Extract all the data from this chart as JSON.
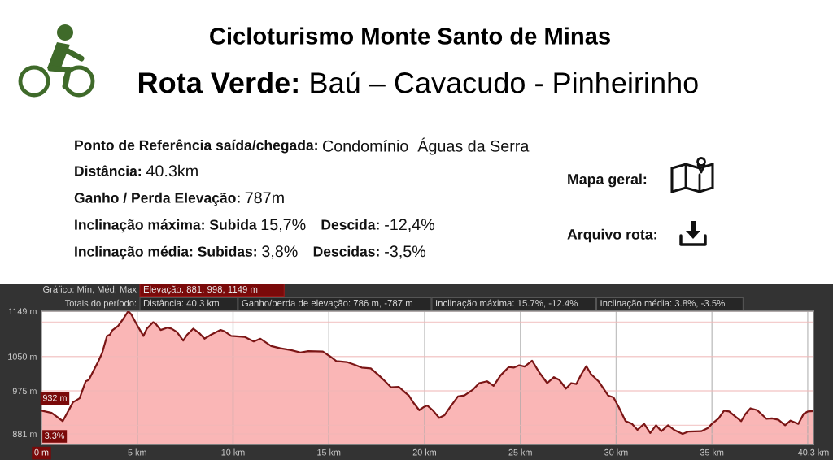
{
  "chart_data": {
    "type": "area",
    "title": "Cicloturismo Monte Santo de Minas",
    "subtitle": "Rota Verde: Baú – Cavacudo - Pinheirinho",
    "annotations": [
      "Ponto de Referência saída/chegada:",
      "Condomínio  Águas da Serra",
      "Distância:",
      "40.3km",
      "Ganho / Perda Elevação:",
      "787m",
      "Inclinação máxima: Subida",
      "15,7%",
      "Descida:",
      "-12,4%",
      "Inclinação média: Subidas:",
      "3,8%",
      "Descidas:",
      "-3,5%",
      "Mapa geral:",
      "Arquivo rota:",
      "Gráfico: Mín, Méd, Max",
      "Elevação: 881, 998, 1149 m",
      "Totais do período:",
      "Distância: 40.3 km",
      "Ganho/perda de elevação: 786 m, -787 m",
      "Inclinação máxima: 15.7%, -12.4%",
      "Inclinação média: 3.8%, -3.5%",
      {
        "text": "932 m",
        "x": 0,
        "y": 932
      },
      "3.3%"
    ],
    "x": [
      0,
      0.53,
      1.11,
      1.5,
      1.64,
      1.99,
      2.31,
      2.47,
      2.96,
      3.17,
      3.42,
      3.58,
      3.69,
      4.0,
      4.28,
      4.53,
      4.69,
      5.04,
      5.32,
      5.5,
      5.83,
      5.97,
      6.22,
      6.57,
      6.78,
      7.06,
      7.4,
      7.61,
      7.92,
      8.24,
      8.51,
      8.86,
      9.35,
      9.56,
      9.9,
      10.6,
      11.08,
      11.43,
      11.99,
      12.47,
      13.03,
      13.51,
      13.93,
      14.69,
      15.04,
      15.39,
      15.94,
      16.36,
      16.71,
      17.19,
      17.61,
      17.96,
      18.24,
      18.65,
      19.0,
      19.17,
      19.44,
      19.72,
      19.93,
      20.14,
      20.42,
      20.76,
      21.04,
      21.32,
      21.74,
      22.08,
      22.5,
      22.85,
      23.26,
      23.6,
      23.97,
      24.39,
      24.67,
      24.94,
      25.22,
      25.61,
      25.99,
      26.4,
      26.75,
      27.03,
      27.38,
      27.65,
      27.92,
      28.19,
      28.44,
      28.68,
      29.1,
      29.58,
      29.86,
      30.14,
      30.49,
      30.83,
      31.11,
      31.46,
      31.78,
      32.08,
      32.36,
      32.71,
      33.06,
      33.47,
      33.75,
      34.44,
      34.79,
      35.0,
      35.35,
      35.63,
      35.9,
      36.25,
      36.53,
      36.74,
      37.01,
      37.36,
      37.85,
      38.13,
      38.47,
      38.82,
      39.1,
      39.51,
      39.79,
      40.0,
      40.3
    ],
    "series": [
      {
        "color": "#7b1616",
        "values": [
          932,
          927,
          909,
          939,
          950,
          959,
          996,
          999,
          1039,
          1058,
          1095,
          1098,
          1107,
          1117,
          1133,
          1149,
          1142,
          1115,
          1095,
          1111,
          1125,
          1121,
          1108,
          1113,
          1111,
          1104,
          1085,
          1098,
          1111,
          1101,
          1089,
          1098,
          1108,
          1105,
          1095,
          1093,
          1083,
          1089,
          1073,
          1068,
          1064,
          1059,
          1062,
          1061,
          1051,
          1040,
          1038,
          1032,
          1026,
          1024,
          1009,
          995,
          983,
          984,
          971,
          965,
          948,
          933,
          939,
          943,
          933,
          916,
          922,
          939,
          963,
          965,
          977,
          992,
          996,
          986,
          1009,
          1027,
          1026,
          1031,
          1028,
          1041,
          1015,
          992,
          1005,
          999,
          980,
          992,
          990,
          1012,
          1029,
          1012,
          995,
          965,
          961,
          939,
          909,
          903,
          890,
          903,
          883,
          900,
          887,
          900,
          889,
          881,
          886,
          887,
          894,
          903,
          915,
          932,
          930,
          918,
          909,
          924,
          937,
          933,
          914,
          915,
          912,
          900,
          910,
          903,
          925,
          930,
          931
        ]
      }
    ],
    "xlim": [
      0,
      40.3
    ],
    "ylim": [
      858,
      1149
    ],
    "xticks": [
      {
        "value": 0,
        "label": "0 m"
      },
      {
        "value": 5,
        "label": "5 km"
      },
      {
        "value": 10,
        "label": "10 km"
      },
      {
        "value": 15,
        "label": "15 km"
      },
      {
        "value": 20,
        "label": "20 km"
      },
      {
        "value": 25,
        "label": "25 km"
      },
      {
        "value": 30,
        "label": "30 km"
      },
      {
        "value": 35,
        "label": "35 km"
      },
      {
        "value": 40,
        "label": null
      },
      {
        "value": 40.3,
        "label": "40.3 km"
      }
    ],
    "yticks": [
      {
        "value": 881,
        "label": "881 m"
      },
      {
        "value": 900,
        "label": null
      },
      {
        "value": 975,
        "label": "975 m"
      },
      {
        "value": 1050,
        "label": "1050 m"
      },
      {
        "value": 1125,
        "label": null
      },
      {
        "value": 1149,
        "label": "1149 m"
      }
    ],
    "grid": true
  }
}
